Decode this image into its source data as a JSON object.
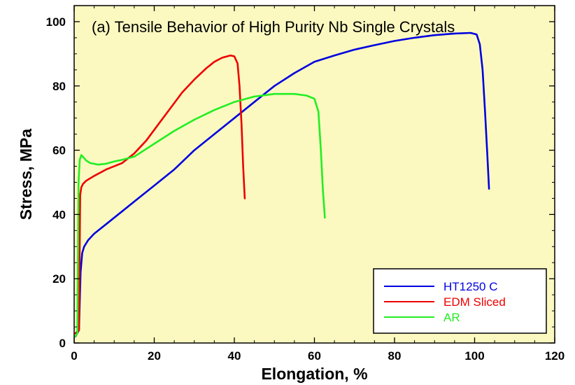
{
  "chart_data": {
    "type": "line",
    "title": "(a) Tensile Behavior of High Purity Nb Single Crystals",
    "xlabel": "Elongation, %",
    "ylabel": "Stress, MPa",
    "xlim": [
      0,
      120
    ],
    "ylim": [
      0,
      105
    ],
    "xticks": [
      0,
      20,
      40,
      60,
      80,
      100,
      120
    ],
    "yticks": [
      0,
      20,
      40,
      60,
      80,
      100
    ],
    "xtick_labels": [
      "0",
      "20",
      "40",
      "60",
      "80",
      "100",
      "120"
    ],
    "ytick_labels": [
      "0",
      "20",
      "40",
      "60",
      "80",
      "100"
    ],
    "grid": false,
    "background_color": "#fbf9c0",
    "legend_position": "bottom-right",
    "series": [
      {
        "name": "HT1250 C",
        "color": "#0000e0",
        "x": [
          0.3,
          1.2,
          1.6,
          2.0,
          2.5,
          3.5,
          5,
          8,
          12,
          16,
          20,
          25,
          30,
          35,
          40,
          45,
          50,
          55,
          60,
          65,
          70,
          75,
          80,
          85,
          90,
          95,
          99,
          100.5,
          101.3,
          102,
          102.6,
          103.2,
          103.6
        ],
        "y": [
          2,
          4,
          22,
          28,
          30,
          32,
          34,
          37,
          41,
          45,
          49,
          54,
          60,
          65,
          70,
          75,
          80,
          84,
          87.5,
          89.5,
          91.3,
          92.7,
          94,
          95,
          95.8,
          96.3,
          96.5,
          96,
          93,
          85,
          72,
          58,
          48
        ]
      },
      {
        "name": "EDM Sliced",
        "color": "#ee0000",
        "x": [
          0.3,
          1.2,
          1.5,
          1.8,
          2.2,
          3,
          5,
          8,
          12,
          15,
          18,
          21,
          24,
          27,
          30,
          33,
          35,
          37,
          39,
          40,
          40.8,
          41.3,
          41.8,
          42.2,
          42.6
        ],
        "y": [
          3,
          4,
          46,
          48.5,
          49.5,
          50.5,
          52,
          54,
          56,
          59,
          63,
          68,
          73,
          78,
          82,
          85.5,
          87.5,
          88.8,
          89.5,
          89.2,
          87,
          80,
          68,
          55,
          45
        ]
      },
      {
        "name": "AR",
        "color": "#22ee22",
        "x": [
          0.2,
          0.8,
          1.1,
          1.4,
          1.8,
          2.3,
          3,
          4,
          6,
          8,
          10,
          12,
          15,
          20,
          25,
          30,
          35,
          40,
          45,
          50,
          55,
          58,
          60,
          61,
          61.6,
          62.1,
          62.6
        ],
        "y": [
          2,
          3,
          50,
          57,
          58.5,
          57.8,
          56.8,
          56,
          55.5,
          55.8,
          56.5,
          57,
          58,
          62,
          66,
          69.5,
          72.5,
          75,
          76.7,
          77.5,
          77.5,
          77,
          76,
          72,
          60,
          48,
          39
        ]
      }
    ]
  }
}
